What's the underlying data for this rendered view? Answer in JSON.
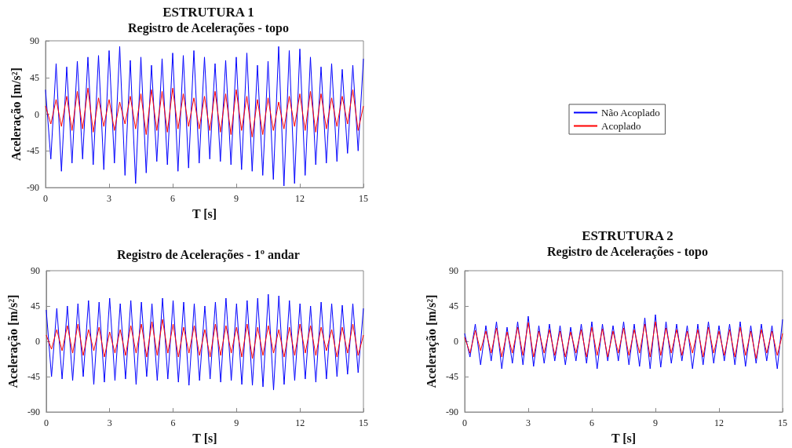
{
  "chart_data": [
    {
      "type": "line",
      "title": "ESTRUTURA 1",
      "subtitle": "Registro de Acelerações - topo",
      "xlabel": "T [s]",
      "ylabel": "Aceleração [m/s²]",
      "x": [
        0,
        0.25,
        0.5,
        0.75,
        1,
        1.25,
        1.5,
        1.75,
        2,
        2.25,
        2.5,
        2.75,
        3,
        3.25,
        3.5,
        3.75,
        4,
        4.25,
        4.5,
        4.75,
        5,
        5.25,
        5.5,
        5.75,
        6,
        6.25,
        6.5,
        6.75,
        7,
        7.25,
        7.5,
        7.75,
        8,
        8.25,
        8.5,
        8.75,
        9,
        9.25,
        9.5,
        9.75,
        10,
        10.25,
        10.5,
        10.75,
        11,
        11.25,
        11.5,
        11.75,
        12,
        12.25,
        12.5,
        12.75,
        13,
        13.25,
        13.5,
        13.75,
        14,
        14.25,
        14.5,
        14.75,
        15
      ],
      "series": [
        {
          "name": "Não Acoplado",
          "color": "#0000ff",
          "values": [
            30,
            -55,
            62,
            -70,
            58,
            -60,
            65,
            -55,
            70,
            -62,
            72,
            -68,
            78,
            -60,
            83,
            -75,
            66,
            -85,
            70,
            -72,
            60,
            -58,
            68,
            -62,
            75,
            -70,
            72,
            -66,
            78,
            -60,
            70,
            -55,
            62,
            -58,
            66,
            -62,
            70,
            -68,
            75,
            -70,
            60,
            -75,
            65,
            -80,
            83,
            -88,
            78,
            -85,
            80,
            -75,
            70,
            -62,
            58,
            -60,
            62,
            -58,
            55,
            -48,
            60,
            -45,
            68
          ]
        },
        {
          "name": "Acoplado",
          "color": "#ff0000",
          "values": [
            10,
            -12,
            18,
            -15,
            22,
            -20,
            28,
            -18,
            32,
            -22,
            20,
            -15,
            18,
            -20,
            15,
            -12,
            22,
            -18,
            25,
            -25,
            30,
            -20,
            28,
            -22,
            32,
            -18,
            25,
            -15,
            20,
            -18,
            22,
            -20,
            28,
            -22,
            25,
            -25,
            30,
            -20,
            22,
            -28,
            18,
            -25,
            20,
            -20,
            15,
            -18,
            22,
            -15,
            25,
            -20,
            28,
            -22,
            25,
            -18,
            20,
            -15,
            22,
            -12,
            30,
            -20,
            10
          ]
        }
      ],
      "xlim": [
        0,
        15
      ],
      "xticks": [
        0,
        3,
        6,
        9,
        12,
        15
      ],
      "ylim": [
        -90,
        90
      ],
      "yticks": [
        -90,
        -45,
        0,
        45,
        90
      ],
      "legend": "right",
      "grid": false,
      "marker": "none",
      "line_style": "solid"
    },
    {
      "type": "line",
      "title": "Registro de Acelerações - 1º andar",
      "xlabel": "T [s]",
      "ylabel": "Aceleração [m/s²]",
      "x": [
        0,
        0.25,
        0.5,
        0.75,
        1,
        1.25,
        1.5,
        1.75,
        2,
        2.25,
        2.5,
        2.75,
        3,
        3.25,
        3.5,
        3.75,
        4,
        4.25,
        4.5,
        4.75,
        5,
        5.25,
        5.5,
        5.75,
        6,
        6.25,
        6.5,
        6.75,
        7,
        7.25,
        7.5,
        7.75,
        8,
        8.25,
        8.5,
        8.75,
        9,
        9.25,
        9.5,
        9.75,
        10,
        10.25,
        10.5,
        10.75,
        11,
        11.25,
        11.5,
        11.75,
        12,
        12.25,
        12.5,
        12.75,
        13,
        13.25,
        13.5,
        13.75,
        14,
        14.25,
        14.5,
        14.75,
        15
      ],
      "series": [
        {
          "color": "#0000ff",
          "values": [
            40,
            -45,
            42,
            -48,
            45,
            -50,
            48,
            -45,
            52,
            -55,
            50,
            -52,
            55,
            -50,
            48,
            -48,
            52,
            -55,
            50,
            -45,
            48,
            -50,
            55,
            -48,
            52,
            -52,
            50,
            -56,
            48,
            -50,
            45,
            -48,
            50,
            -52,
            55,
            -50,
            48,
            -55,
            52,
            -56,
            55,
            -58,
            60,
            -62,
            58,
            -55,
            52,
            -50,
            48,
            -48,
            45,
            -52,
            50,
            -48,
            48,
            -45,
            46,
            -42,
            48,
            -40,
            42
          ]
        },
        {
          "color": "#ff0000",
          "values": [
            8,
            -10,
            15,
            -12,
            20,
            -15,
            22,
            -18,
            15,
            -12,
            18,
            -20,
            12,
            -15,
            15,
            -18,
            20,
            -15,
            22,
            -20,
            25,
            -18,
            28,
            -15,
            22,
            -20,
            18,
            -15,
            20,
            -18,
            15,
            -20,
            22,
            -18,
            20,
            -15,
            18,
            -20,
            22,
            -22,
            18,
            -18,
            20,
            -15,
            15,
            -20,
            18,
            -18,
            22,
            -15,
            20,
            -18,
            18,
            -12,
            15,
            -20,
            18,
            -15,
            22,
            -18,
            8
          ]
        }
      ],
      "xlim": [
        0,
        15
      ],
      "xticks": [
        0,
        3,
        6,
        9,
        12,
        15
      ],
      "ylim": [
        -90,
        90
      ],
      "yticks": [
        -90,
        -45,
        0,
        45,
        90
      ],
      "grid": false,
      "marker": "none",
      "line_style": "solid"
    },
    {
      "type": "line",
      "title": "ESTRUTURA 2",
      "subtitle": "Registro de Acelerações - topo",
      "xlabel": "T [s]",
      "ylabel": "Aceleração [m/s²]",
      "x": [
        0,
        0.25,
        0.5,
        0.75,
        1,
        1.25,
        1.5,
        1.75,
        2,
        2.25,
        2.5,
        2.75,
        3,
        3.25,
        3.5,
        3.75,
        4,
        4.25,
        4.5,
        4.75,
        5,
        5.25,
        5.5,
        5.75,
        6,
        6.25,
        6.5,
        6.75,
        7,
        7.25,
        7.5,
        7.75,
        8,
        8.25,
        8.5,
        8.75,
        9,
        9.25,
        9.5,
        9.75,
        10,
        10.25,
        10.5,
        10.75,
        11,
        11.25,
        11.5,
        11.75,
        12,
        12.25,
        12.5,
        12.75,
        13,
        13.25,
        13.5,
        13.75,
        14,
        14.25,
        14.5,
        14.75,
        15
      ],
      "series": [
        {
          "color": "#0000ff",
          "values": [
            10,
            -20,
            22,
            -30,
            20,
            -25,
            25,
            -35,
            18,
            -28,
            25,
            -30,
            32,
            -32,
            20,
            -28,
            22,
            -25,
            20,
            -30,
            18,
            -25,
            22,
            -28,
            25,
            -35,
            22,
            -25,
            20,
            -25,
            25,
            -30,
            22,
            -32,
            30,
            -35,
            34,
            -33,
            25,
            -28,
            22,
            -25,
            20,
            -35,
            22,
            -30,
            25,
            -28,
            20,
            -25,
            22,
            -30,
            25,
            -32,
            20,
            -28,
            22,
            -25,
            20,
            -35,
            28
          ]
        },
        {
          "color": "#ff0000",
          "values": [
            5,
            -15,
            14,
            -12,
            13,
            -15,
            17,
            -20,
            12,
            -15,
            18,
            -18,
            24,
            -20,
            13,
            -15,
            15,
            -18,
            13,
            -20,
            12,
            -15,
            15,
            -20,
            18,
            -18,
            16,
            -20,
            13,
            -15,
            17,
            -18,
            15,
            -15,
            22,
            -20,
            25,
            -18,
            17,
            -15,
            15,
            -18,
            13,
            -15,
            15,
            -20,
            18,
            -15,
            13,
            -18,
            15,
            -20,
            18,
            -18,
            13,
            -22,
            15,
            -15,
            13,
            -18,
            10
          ]
        }
      ],
      "xlim": [
        0,
        15
      ],
      "xticks": [
        0,
        3,
        6,
        9,
        12,
        15
      ],
      "ylim": [
        -90,
        90
      ],
      "yticks": [
        -90,
        -45,
        0,
        45,
        90
      ],
      "grid": false,
      "marker": "none",
      "line_style": "solid"
    }
  ]
}
